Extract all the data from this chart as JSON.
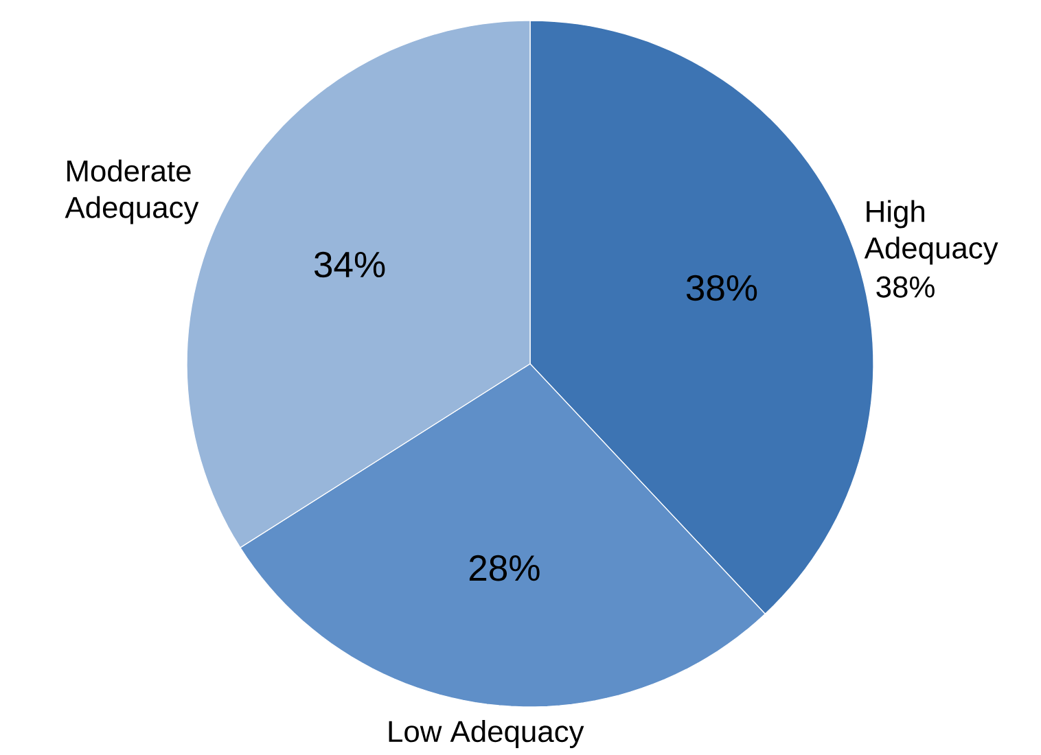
{
  "chart_data": {
    "type": "pie",
    "categories": [
      "High Adequacy",
      "Low Adequacy",
      "Moderate Adequacy"
    ],
    "values": [
      38,
      28,
      34
    ],
    "colors": [
      "#3d74b3",
      "#5f8fc8",
      "#98b6da"
    ],
    "value_labels": [
      "38%",
      "28%",
      "34%"
    ],
    "annotations": [
      "38%"
    ]
  }
}
